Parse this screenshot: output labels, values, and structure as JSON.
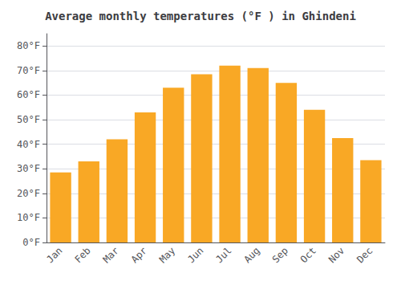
{
  "chart_data": {
    "type": "bar",
    "title": "Average monthly temperatures (°F ) in Ghindeni",
    "categories": [
      "Jan",
      "Feb",
      "Mar",
      "Apr",
      "May",
      "Jun",
      "Jul",
      "Aug",
      "Sep",
      "Oct",
      "Nov",
      "Dec"
    ],
    "values": [
      28.5,
      33.0,
      42.0,
      53.0,
      63.0,
      68.5,
      72.0,
      71.0,
      65.0,
      54.0,
      42.5,
      33.5
    ],
    "color": "#F9A825",
    "ylim": [
      0,
      85
    ],
    "yticks": [
      {
        "value": 0,
        "label": "0°F"
      },
      {
        "value": 10,
        "label": "10°F"
      },
      {
        "value": 20,
        "label": "20°F"
      },
      {
        "value": 30,
        "label": "30°F"
      },
      {
        "value": 40,
        "label": "40°F"
      },
      {
        "value": 50,
        "label": "50°F"
      },
      {
        "value": 60,
        "label": "60°F"
      },
      {
        "value": 70,
        "label": "70°F"
      },
      {
        "value": 80,
        "label": "80°F"
      }
    ],
    "grid": true
  }
}
